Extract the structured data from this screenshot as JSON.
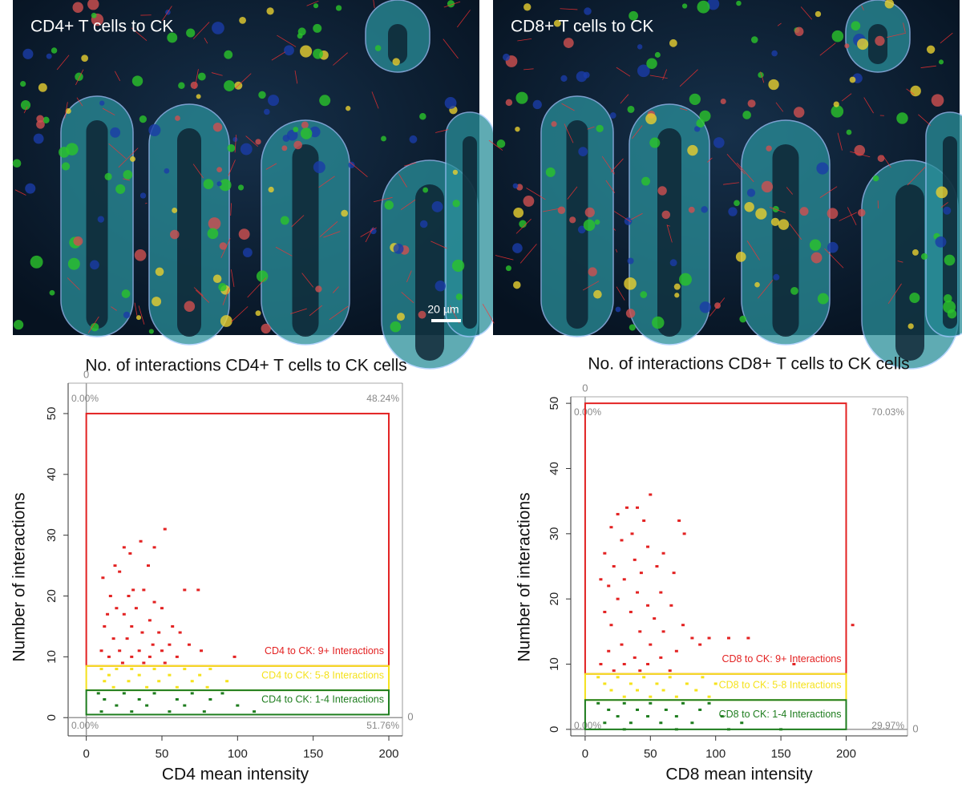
{
  "panels": [
    {
      "label": "CD4+ T cells to CK",
      "scale_bar": "20 µm"
    },
    {
      "label": "CD8+ T cells to CK"
    }
  ],
  "chart_data": [
    {
      "type": "scatter",
      "title": "No. of interactions CD4+ T cells to CK cells",
      "x_label": "CD4 mean intensity",
      "y_label": "Number of interactions",
      "xlim": [
        -12,
        209
      ],
      "ylim": [
        -3,
        55
      ],
      "xticks": [
        0,
        50,
        100,
        150,
        200
      ],
      "yticks": [
        0,
        10,
        20,
        30,
        40,
        50
      ],
      "crosshair": {
        "x": 0,
        "y": 0
      },
      "quadrant_labels": [
        {
          "label": "0.00%",
          "corner": "top-left"
        },
        {
          "label": "48.24%",
          "corner": "top-right"
        },
        {
          "label": "0.00%",
          "corner": "bottom-left"
        },
        {
          "label": "51.76%",
          "corner": "bottom-right"
        }
      ],
      "gates": [
        {
          "name": "CD4 to CK: 9+ Interactions",
          "color": "#e32222",
          "x": [
            0,
            200
          ],
          "y": [
            8.5,
            50
          ]
        },
        {
          "name": "CD4 to CK: 5-8 Interactions",
          "color": "#f5e21c",
          "x": [
            0,
            200
          ],
          "y": [
            4.5,
            8.5
          ]
        },
        {
          "name": "CD4 to CK: 1-4 Interactions",
          "color": "#1e7d1e",
          "x": [
            0,
            200
          ],
          "y": [
            0.5,
            4.5
          ]
        }
      ],
      "series": [
        {
          "color": "#e32222",
          "x": [
            52,
            36,
            45,
            25,
            29,
            19,
            41,
            11,
            22,
            31,
            38,
            65,
            74,
            16,
            28,
            45,
            20,
            33,
            50,
            14,
            25,
            42,
            57,
            12,
            30,
            37,
            48,
            62,
            18,
            27,
            44,
            55,
            68,
            10,
            22,
            35,
            50,
            76,
            15,
            30,
            42,
            60,
            98,
            24,
            38,
            52
          ],
          "values": [
            31,
            29,
            28,
            28,
            27,
            25,
            25,
            23,
            24,
            21,
            21,
            21,
            21,
            20,
            20,
            19,
            18,
            18,
            18,
            17,
            17,
            16,
            15,
            15,
            15,
            14,
            14,
            14,
            13,
            13,
            12,
            12,
            12,
            11,
            11,
            11,
            11,
            11,
            10,
            10,
            10,
            10,
            10,
            9,
            9,
            9
          ]
        },
        {
          "color": "#f5e21c",
          "x": [
            10,
            20,
            30,
            45,
            65,
            82,
            15,
            35,
            55,
            75,
            12,
            28,
            48,
            70,
            93,
            18,
            40,
            60,
            80
          ],
          "values": [
            8,
            8,
            8,
            8,
            8,
            8,
            7,
            7,
            7,
            7,
            6,
            6,
            6,
            6,
            6,
            5,
            5,
            5,
            5
          ]
        },
        {
          "color": "#1e7d1e",
          "x": [
            8,
            25,
            45,
            70,
            90,
            12,
            35,
            60,
            82,
            20,
            40,
            65,
            100,
            10,
            30,
            55,
            78,
            111
          ],
          "values": [
            4,
            4,
            4,
            4,
            4,
            3,
            3,
            3,
            3,
            2,
            2,
            2,
            2,
            1,
            1,
            1,
            1,
            1
          ]
        }
      ]
    },
    {
      "type": "scatter",
      "title": "No. of interactions CD8+ T cells to CK cells",
      "x_label": "CD8 mean intensity",
      "y_label": "Number of interactions",
      "xlim": [
        -11,
        247
      ],
      "ylim": [
        -1,
        51
      ],
      "xticks": [
        0,
        50,
        100,
        150,
        200
      ],
      "yticks": [
        0,
        10,
        20,
        30,
        40,
        50
      ],
      "crosshair": {
        "x": 0,
        "y": 0
      },
      "quadrant_labels": [
        {
          "label": "0.00%",
          "corner": "top-left"
        },
        {
          "label": "70.03%",
          "corner": "top-right"
        },
        {
          "label": "0.00%",
          "corner": "bottom-left"
        },
        {
          "label": "29.97%",
          "corner": "bottom-right"
        }
      ],
      "gates": [
        {
          "name": "CD8 to CK: 9+ Interactions",
          "color": "#e32222",
          "x": [
            0,
            200
          ],
          "y": [
            8.5,
            50
          ]
        },
        {
          "name": "CD8 to CK: 5-8 Interactions",
          "color": "#f5e21c",
          "x": [
            0,
            200
          ],
          "y": [
            4.5,
            8.5
          ]
        },
        {
          "name": "CD8 to CK: 1-4 Interactions",
          "color": "#1e7d1e",
          "x": [
            0,
            200
          ],
          "y": [
            0,
            4.5
          ]
        }
      ],
      "series": [
        {
          "color": "#e32222",
          "x": [
            50,
            32,
            40,
            25,
            45,
            72,
            20,
            36,
            76,
            28,
            48,
            15,
            38,
            60,
            22,
            43,
            55,
            12,
            30,
            68,
            18,
            40,
            58,
            25,
            48,
            66,
            15,
            35,
            53,
            75,
            20,
            42,
            60,
            82,
            95,
            110,
            125,
            28,
            50,
            70,
            88,
            18,
            38,
            58,
            12,
            30,
            48,
            160,
            22,
            42,
            65,
            205
          ],
          "values": [
            36,
            34,
            34,
            33,
            32,
            32,
            31,
            30,
            30,
            29,
            28,
            27,
            26,
            27,
            25,
            24,
            25,
            23,
            23,
            24,
            22,
            21,
            21,
            20,
            19,
            19,
            18,
            18,
            17,
            16,
            16,
            15,
            15,
            14,
            14,
            14,
            14,
            13,
            13,
            12,
            13,
            12,
            11,
            11,
            10,
            10,
            10,
            10,
            9,
            9,
            9,
            16
          ]
        },
        {
          "color": "#f5e21c",
          "x": [
            10,
            25,
            45,
            65,
            90,
            15,
            35,
            55,
            78,
            100,
            20,
            40,
            60,
            85,
            30,
            50,
            70,
            95
          ],
          "values": [
            8,
            8,
            8,
            8,
            8,
            7,
            7,
            7,
            7,
            7,
            6,
            6,
            6,
            6,
            5,
            5,
            5,
            5
          ]
        },
        {
          "color": "#1e7d1e",
          "x": [
            10,
            30,
            50,
            75,
            95,
            18,
            40,
            62,
            88,
            25,
            48,
            70,
            105,
            15,
            35,
            58,
            82,
            120,
            30,
            70,
            110,
            150
          ],
          "values": [
            4,
            4,
            4,
            4,
            4,
            3,
            3,
            3,
            3,
            2,
            2,
            2,
            2,
            1,
            1,
            1,
            1,
            1,
            0,
            0,
            0,
            0
          ]
        }
      ]
    }
  ]
}
